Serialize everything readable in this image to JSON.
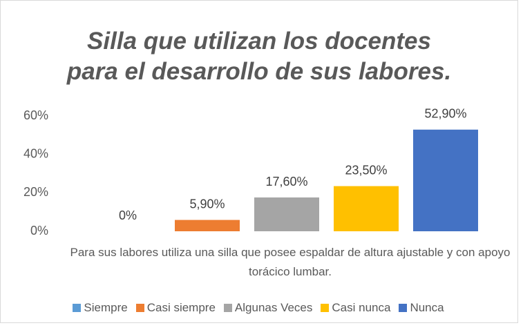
{
  "chart_data": {
    "type": "bar",
    "title": "Silla que utilizan los docentes para el desarrollo de sus labores.",
    "categories": [
      "Para sus labores utiliza una silla que posee espaldar de altura ajustable y con apoyo torácico lumbar."
    ],
    "series": [
      {
        "name": "Siempre",
        "color": "#5b9bd5",
        "values": [
          0
        ],
        "value_labels": [
          "0%"
        ]
      },
      {
        "name": "Casi siempre",
        "color": "#ed7d31",
        "values": [
          5.9
        ],
        "value_labels": [
          "5,90%"
        ]
      },
      {
        "name": "Algunas Veces",
        "color": "#a5a5a5",
        "values": [
          17.6
        ],
        "value_labels": [
          "17,60%"
        ]
      },
      {
        "name": "Casi nunca",
        "color": "#ffc000",
        "values": [
          23.5
        ],
        "value_labels": [
          "23,50%"
        ]
      },
      {
        "name": "Nunca",
        "color": "#4472c4",
        "values": [
          52.9
        ],
        "value_labels": [
          "52,90%"
        ]
      }
    ],
    "ylim": [
      0,
      60
    ],
    "yticks": [
      {
        "value": 0,
        "label": "0%"
      },
      {
        "value": 20,
        "label": "20%"
      },
      {
        "value": 40,
        "label": "40%"
      },
      {
        "value": 60,
        "label": "60%"
      }
    ],
    "grid": false,
    "legend": "bottom"
  }
}
